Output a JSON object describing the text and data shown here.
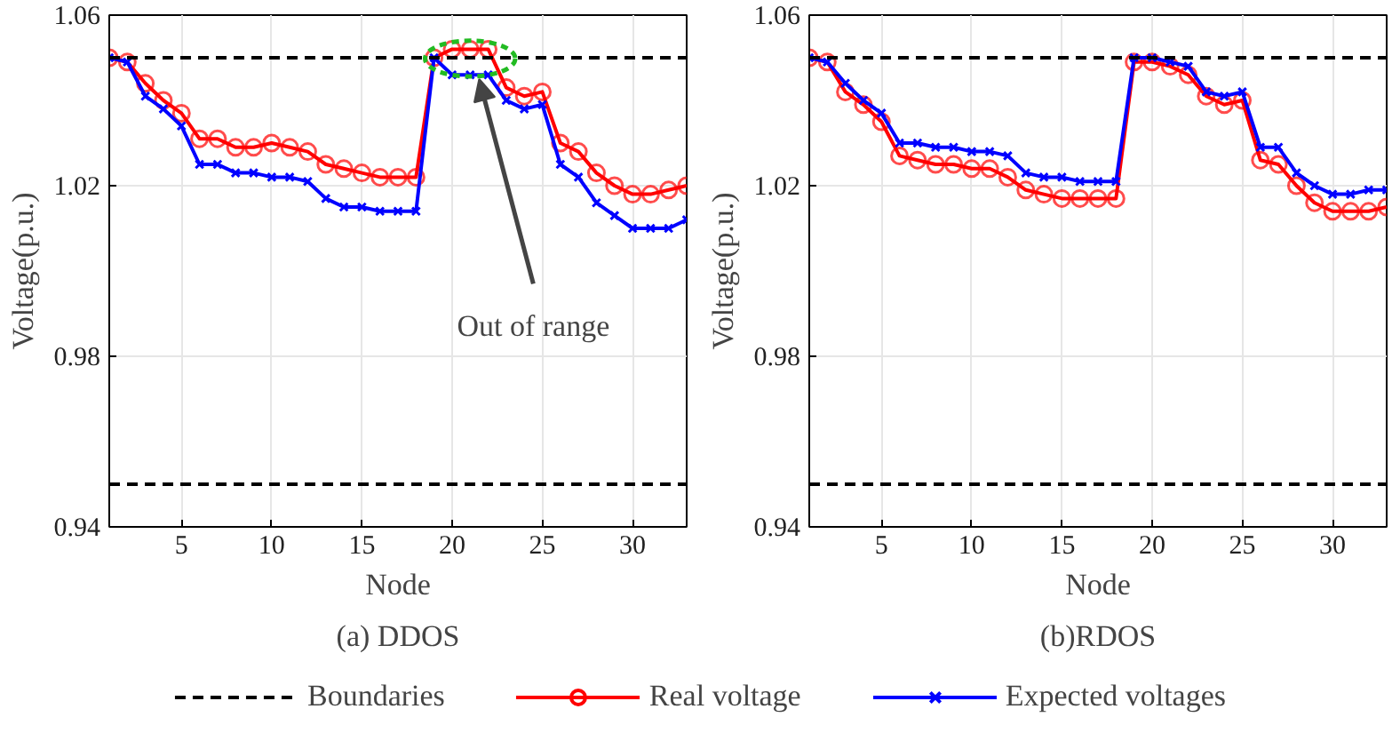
{
  "chart_data": [
    {
      "type": "line",
      "subtitle": "(a) DDOS",
      "xlabel": "Node",
      "ylabel": "Voltage(p.u.)",
      "x": [
        1,
        2,
        3,
        4,
        5,
        6,
        7,
        8,
        9,
        10,
        11,
        12,
        13,
        14,
        15,
        16,
        17,
        18,
        19,
        20,
        21,
        22,
        23,
        24,
        25,
        26,
        27,
        28,
        29,
        30,
        31,
        32,
        33
      ],
      "xlim": [
        1,
        33
      ],
      "xticks": [
        5,
        10,
        15,
        20,
        25,
        30
      ],
      "ylim": [
        0.94,
        1.06
      ],
      "yticks": [
        0.94,
        0.98,
        1.02,
        1.06
      ],
      "grid": true,
      "legend": "bottom",
      "line_style": "solid",
      "series": [
        {
          "name": "Real voltage",
          "color": "#ff0000",
          "marker": "circle",
          "values": [
            1.05,
            1.049,
            1.044,
            1.04,
            1.037,
            1.031,
            1.031,
            1.029,
            1.029,
            1.03,
            1.029,
            1.028,
            1.025,
            1.024,
            1.023,
            1.022,
            1.022,
            1.022,
            1.05,
            1.052,
            1.052,
            1.052,
            1.043,
            1.041,
            1.042,
            1.03,
            1.028,
            1.023,
            1.02,
            1.018,
            1.018,
            1.019,
            1.02
          ]
        },
        {
          "name": "Expected voltages",
          "color": "#0000ff",
          "marker": "cross",
          "values": [
            1.05,
            1.049,
            1.041,
            1.038,
            1.034,
            1.025,
            1.025,
            1.023,
            1.023,
            1.022,
            1.022,
            1.021,
            1.017,
            1.015,
            1.015,
            1.014,
            1.014,
            1.014,
            1.05,
            1.046,
            1.046,
            1.046,
            1.04,
            1.038,
            1.039,
            1.025,
            1.022,
            1.016,
            1.013,
            1.01,
            1.01,
            1.01,
            1.012
          ]
        }
      ],
      "ref_lines": [
        {
          "axis": "y",
          "value": 1.05,
          "label": "Boundaries",
          "color": "#000000",
          "line_style": "dashed"
        },
        {
          "axis": "y",
          "value": 0.95,
          "color": "#000000",
          "line_style": "dashed"
        }
      ],
      "annotations": [
        {
          "text": "Out of range",
          "x": 21.5,
          "y": 1.045
        }
      ]
    },
    {
      "type": "line",
      "subtitle": "(b)RDOS",
      "xlabel": "Node",
      "ylabel": "Voltage(p.u.)",
      "x": [
        1,
        2,
        3,
        4,
        5,
        6,
        7,
        8,
        9,
        10,
        11,
        12,
        13,
        14,
        15,
        16,
        17,
        18,
        19,
        20,
        21,
        22,
        23,
        24,
        25,
        26,
        27,
        28,
        29,
        30,
        31,
        32,
        33
      ],
      "xlim": [
        1,
        33
      ],
      "xticks": [
        5,
        10,
        15,
        20,
        25,
        30
      ],
      "ylim": [
        0.94,
        1.06
      ],
      "yticks": [
        0.94,
        0.98,
        1.02,
        1.06
      ],
      "grid": true,
      "line_style": "solid",
      "series": [
        {
          "color": "#ff0000",
          "marker": "circle",
          "values": [
            1.05,
            1.049,
            1.042,
            1.039,
            1.035,
            1.027,
            1.026,
            1.025,
            1.025,
            1.024,
            1.024,
            1.022,
            1.019,
            1.018,
            1.017,
            1.017,
            1.017,
            1.017,
            1.049,
            1.049,
            1.048,
            1.046,
            1.041,
            1.039,
            1.04,
            1.026,
            1.025,
            1.02,
            1.016,
            1.014,
            1.014,
            1.014,
            1.015
          ]
        },
        {
          "color": "#0000ff",
          "marker": "cross",
          "values": [
            1.05,
            1.049,
            1.044,
            1.04,
            1.037,
            1.03,
            1.03,
            1.029,
            1.029,
            1.028,
            1.028,
            1.027,
            1.023,
            1.022,
            1.022,
            1.021,
            1.021,
            1.021,
            1.05,
            1.05,
            1.049,
            1.048,
            1.042,
            1.041,
            1.042,
            1.029,
            1.029,
            1.023,
            1.02,
            1.018,
            1.018,
            1.019,
            1.019
          ]
        }
      ],
      "ref_lines": [
        {
          "axis": "y",
          "value": 1.05,
          "color": "#000000",
          "line_style": "dashed"
        },
        {
          "axis": "y",
          "value": 0.95,
          "color": "#000000",
          "line_style": "dashed"
        }
      ]
    }
  ]
}
